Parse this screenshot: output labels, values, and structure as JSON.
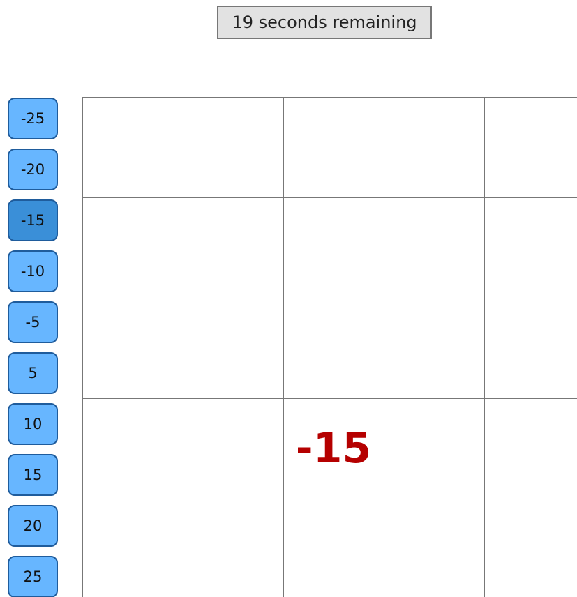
{
  "timer": "19 seconds remaining",
  "buttons": [
    "-25",
    "-20",
    "-15",
    "-10",
    "-5",
    "5",
    "10",
    "15",
    "20",
    "25"
  ],
  "board": {
    "placed": "-15"
  }
}
